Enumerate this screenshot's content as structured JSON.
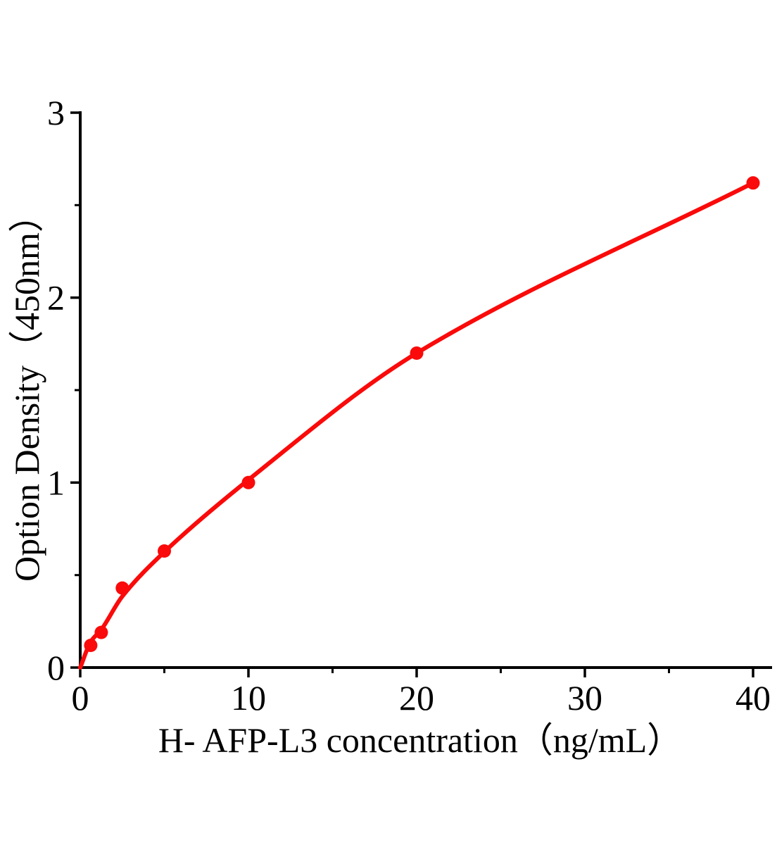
{
  "figure": {
    "background_color": "#ffffff"
  },
  "chart_data": {
    "type": "scatter",
    "title": "",
    "xlabel": "H- AFP-L3 concentration（ng/mL）",
    "ylabel": "Option Density（450nm）",
    "x": [
      0.625,
      1.25,
      2.5,
      5,
      10,
      20,
      40
    ],
    "y": [
      0.12,
      0.19,
      0.43,
      0.63,
      1.0,
      1.7,
      2.62
    ],
    "xlim": [
      0,
      41.2
    ],
    "ylim": [
      0,
      3
    ],
    "x_major_ticks": [
      0,
      10,
      20,
      30,
      40
    ],
    "x_minor_ticks": [
      5,
      15,
      25,
      35
    ],
    "y_major_ticks": [
      0,
      1,
      2,
      3
    ],
    "y_minor_ticks": [
      0.5,
      1.5,
      2.5
    ],
    "grid": false,
    "legend": null,
    "marker_color": "#fa0a0a",
    "line_color": "#fa0a0a",
    "axis_color": "#000000",
    "fit_curve_anchors": [
      [
        0,
        0
      ],
      [
        0.625,
        0.14
      ],
      [
        1.25,
        0.205
      ],
      [
        2.5,
        0.385
      ],
      [
        5,
        0.625
      ],
      [
        10,
        1.015
      ],
      [
        20,
        1.7
      ],
      [
        40,
        2.62
      ]
    ]
  }
}
